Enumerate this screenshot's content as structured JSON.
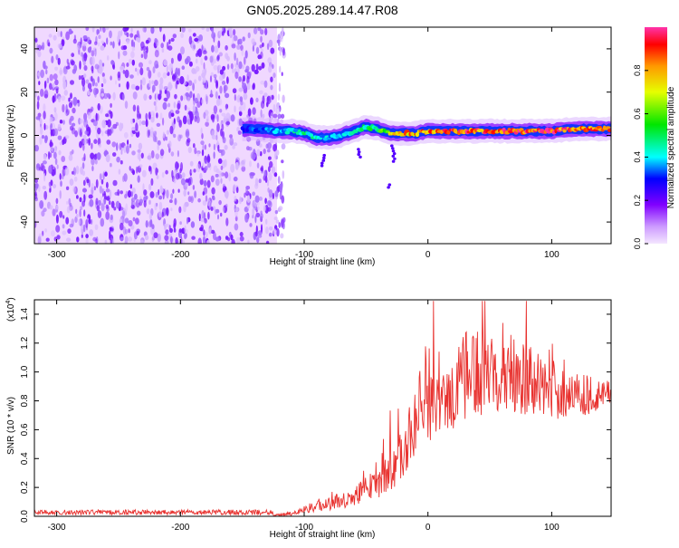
{
  "title": "GN05.2025.289.14.47.R08",
  "colors": {
    "background": "#ffffff",
    "axis": "#000000",
    "snr_line": "#e8322f",
    "spectrogram_bg": "#f0d8ff",
    "spectrogram_dots": "#7a1cff"
  },
  "chart_data": [
    {
      "type": "heatmap",
      "name": "spectrogram",
      "xlabel": "Height of straight line (km)",
      "ylabel": "Frequency (Hz)",
      "xlim": [
        -318,
        148
      ],
      "ylim": [
        -50,
        50
      ],
      "x_ticks": [
        -300,
        -200,
        -100,
        0,
        100
      ],
      "x_tick_labels": [
        "-300",
        "-200",
        "-100",
        "0",
        "100"
      ],
      "y_ticks": [
        -40,
        -20,
        0,
        20,
        40
      ],
      "y_tick_labels": [
        "-40",
        "-20",
        "0",
        "20",
        "40"
      ],
      "noise_region": {
        "x_range": [
          -318,
          -122
        ],
        "frequency_range": [
          -50,
          50
        ]
      },
      "ridge": {
        "x": [
          -150,
          -140,
          -120,
          -110,
          -100,
          -90,
          -80,
          -70,
          -60,
          -50,
          -40,
          -30,
          -20,
          -10,
          0,
          20,
          40,
          60,
          80,
          100,
          120,
          148
        ],
        "frequency": [
          3,
          3,
          2,
          2,
          1,
          -1,
          -1,
          0,
          2,
          4,
          3,
          1,
          1,
          1,
          2,
          2,
          2,
          2,
          2,
          2,
          3,
          3
        ],
        "peak_amplitude": [
          0.3,
          0.35,
          0.4,
          0.45,
          0.5,
          0.45,
          0.4,
          0.45,
          0.5,
          0.5,
          0.6,
          0.75,
          0.85,
          0.9,
          0.9,
          0.95,
          0.95,
          0.98,
          0.98,
          0.97,
          0.95,
          0.95
        ]
      },
      "colorbar": {
        "label": "Normalized spectral amplitude",
        "range": [
          0,
          1
        ],
        "ticks": [
          0.0,
          0.2,
          0.4,
          0.6,
          0.8
        ],
        "tick_labels": [
          "0.0",
          "0.2",
          "0.4",
          "0.6",
          "0.8"
        ]
      }
    },
    {
      "type": "line",
      "name": "snr",
      "xlabel": "Height of straight line (km)",
      "ylabel": "SNR (10 * v/v)",
      "scale_label": "(x10",
      "scale_exponent": "4",
      "xlim": [
        -318,
        148
      ],
      "ylim": [
        0,
        15000
      ],
      "x_ticks": [
        -300,
        -200,
        -100,
        0,
        100
      ],
      "x_tick_labels": [
        "-300",
        "-200",
        "-100",
        "0",
        "100"
      ],
      "y_ticks": [
        0,
        2000,
        4000,
        6000,
        8000,
        10000,
        12000,
        14000
      ],
      "y_tick_labels": [
        "0.0",
        "0.2",
        "0.4",
        "0.6",
        "0.8",
        "1.0",
        "1.2",
        "1.4"
      ],
      "envelope": {
        "x": [
          -318,
          -200,
          -125,
          -110,
          -100,
          -80,
          -60,
          -40,
          -25,
          -15,
          -8,
          -2,
          0,
          10,
          20,
          30,
          40,
          50,
          60,
          70,
          80,
          90,
          100,
          110,
          120,
          130,
          140,
          148
        ],
        "baseline": [
          0,
          0,
          0,
          50,
          200,
          400,
          700,
          1200,
          2000,
          3500,
          4800,
          5500,
          5000,
          5500,
          6000,
          6400,
          6800,
          7000,
          7200,
          7100,
          7000,
          6900,
          6800,
          6700,
          6900,
          7000,
          7200,
          7600
        ],
        "amplitude": [
          200,
          200,
          200,
          400,
          800,
          1400,
          2000,
          3000,
          4500,
          6000,
          7000,
          9000,
          7000,
          6000,
          7000,
          9000,
          9500,
          9000,
          9500,
          8000,
          7000,
          6500,
          6000,
          5500,
          5000,
          4000,
          3000,
          2500
        ]
      }
    }
  ]
}
